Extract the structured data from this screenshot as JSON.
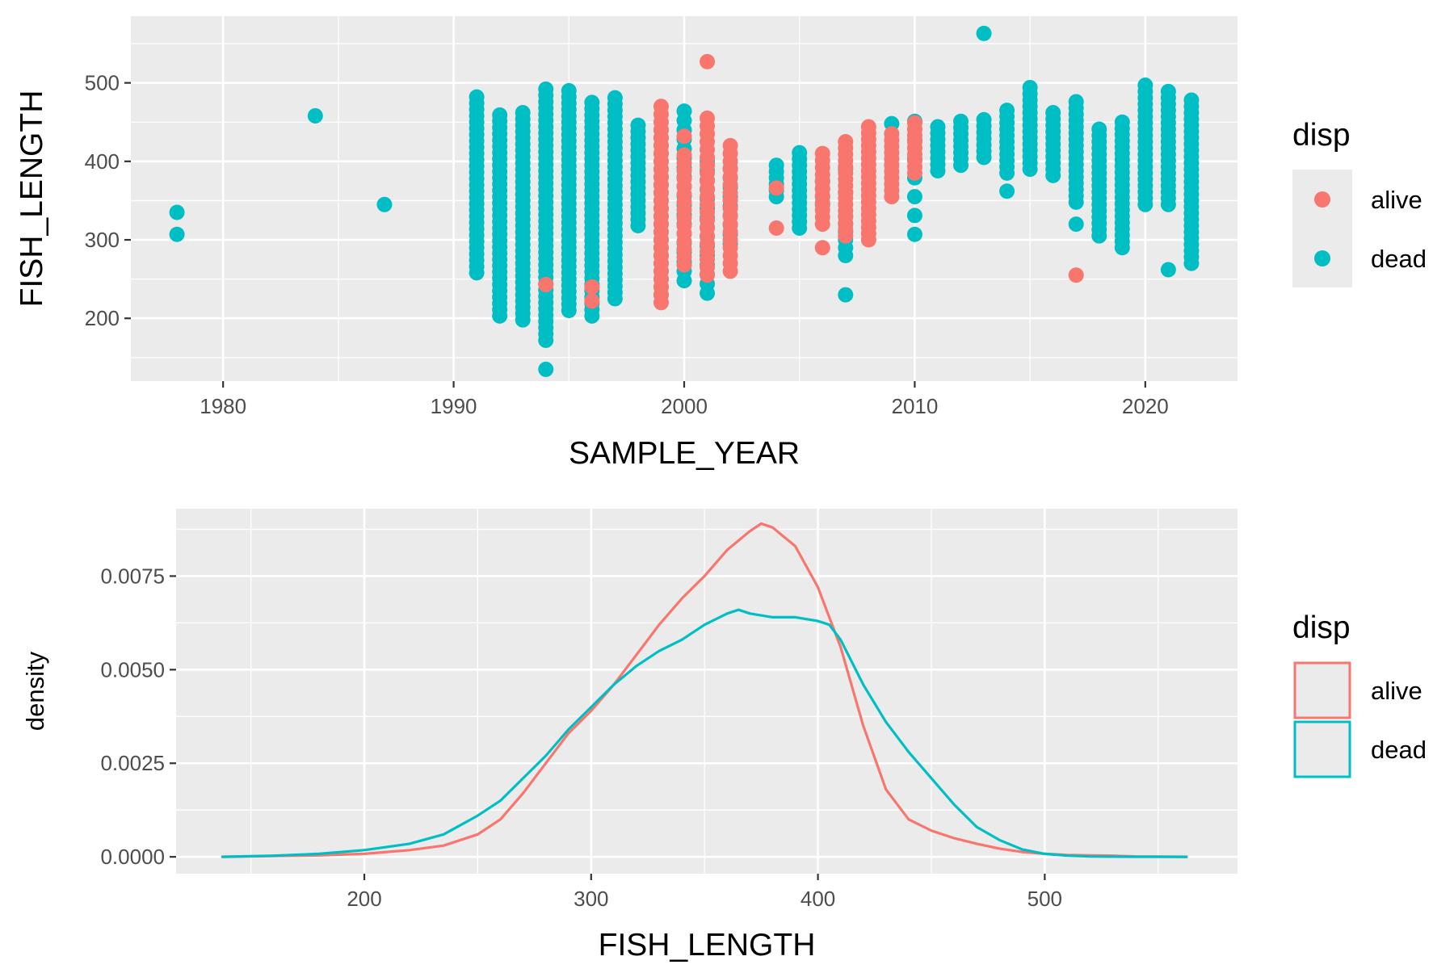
{
  "colors": {
    "alive": "#F8766D",
    "dead": "#00BFC4",
    "panel_background": "#EBEBEB",
    "grid": "#FFFFFF",
    "axis_text": "#4D4D4D",
    "title_text": "#000000"
  },
  "chart_data": [
    {
      "type": "scatter",
      "xlabel": "SAMPLE_YEAR",
      "ylabel": "FISH_LENGTH",
      "xlim": [
        1976,
        2024
      ],
      "ylim": [
        120,
        585
      ],
      "xticks": [
        1980,
        1990,
        2000,
        2010,
        2020
      ],
      "yticks": [
        200,
        300,
        400,
        500
      ],
      "grid": true,
      "legend": {
        "title": "disp",
        "position": "right",
        "entries": [
          "alive",
          "dead"
        ]
      },
      "series": [
        {
          "name": "dead",
          "color_key": "dead",
          "columns": [
            {
              "x": 1978,
              "y_min": 307,
              "y_max": 335,
              "step": 28
            },
            {
              "x": 1984,
              "y_min": 458,
              "y_max": 458,
              "step": 10
            },
            {
              "x": 1987,
              "y_min": 345,
              "y_max": 345,
              "step": 10
            },
            {
              "x": 1991,
              "y_min": 258,
              "y_max": 483,
              "step": 8
            },
            {
              "x": 1992,
              "y_min": 203,
              "y_max": 460,
              "step": 8
            },
            {
              "x": 1993,
              "y_min": 198,
              "y_max": 468,
              "step": 8
            },
            {
              "x": 1994,
              "y_min": 172,
              "y_max": 493,
              "step": 8
            },
            {
              "x": 1995,
              "y_min": 210,
              "y_max": 495,
              "step": 8
            },
            {
              "x": 1996,
              "y_min": 203,
              "y_max": 478,
              "step": 8
            },
            {
              "x": 1997,
              "y_min": 225,
              "y_max": 485,
              "step": 8
            },
            {
              "x": 1998,
              "y_min": 318,
              "y_max": 448,
              "step": 8
            },
            {
              "x": 1999,
              "y_min": 230,
              "y_max": 440,
              "step": 10
            },
            {
              "x": 2000,
              "y_min": 248,
              "y_max": 472,
              "step": 12
            },
            {
              "x": 2001,
              "y_min": 232,
              "y_max": 400,
              "step": 12
            },
            {
              "x": 2002,
              "y_min": 295,
              "y_max": 402,
              "step": 12
            },
            {
              "x": 2004,
              "y_min": 355,
              "y_max": 398,
              "step": 8
            },
            {
              "x": 2005,
              "y_min": 315,
              "y_max": 412,
              "step": 8
            },
            {
              "x": 2006,
              "y_min": 345,
              "y_max": 380,
              "step": 10
            },
            {
              "x": 2007,
              "y_min": 280,
              "y_max": 330,
              "step": 10
            },
            {
              "x": 2009,
              "y_min": 448,
              "y_max": 448,
              "step": 10
            },
            {
              "x": 2010,
              "y_min": 307,
              "y_max": 455,
              "step": 24
            },
            {
              "x": 2011,
              "y_min": 388,
              "y_max": 450,
              "step": 8
            },
            {
              "x": 2012,
              "y_min": 395,
              "y_max": 458,
              "step": 8
            },
            {
              "x": 2013,
              "y_min": 405,
              "y_max": 460,
              "step": 8
            },
            {
              "x": 2014,
              "y_min": 385,
              "y_max": 465,
              "step": 8
            },
            {
              "x": 2015,
              "y_min": 390,
              "y_max": 500,
              "step": 8
            },
            {
              "x": 2016,
              "y_min": 382,
              "y_max": 468,
              "step": 8
            },
            {
              "x": 2017,
              "y_min": 348,
              "y_max": 478,
              "step": 8
            },
            {
              "x": 2018,
              "y_min": 305,
              "y_max": 445,
              "step": 8
            },
            {
              "x": 2019,
              "y_min": 290,
              "y_max": 455,
              "step": 8
            },
            {
              "x": 2020,
              "y_min": 345,
              "y_max": 500,
              "step": 8
            },
            {
              "x": 2021,
              "y_min": 345,
              "y_max": 490,
              "step": 8
            },
            {
              "x": 2022,
              "y_min": 270,
              "y_max": 485,
              "step": 8
            }
          ],
          "points": [
            {
              "x": 1994,
              "y": 135
            },
            {
              "x": 2007,
              "y": 230
            },
            {
              "x": 2013,
              "y": 563
            },
            {
              "x": 2014,
              "y": 362
            },
            {
              "x": 2017,
              "y": 320
            },
            {
              "x": 2021,
              "y": 262
            },
            {
              "x": 2007,
              "y": 390
            },
            {
              "x": 2007,
              "y": 360
            }
          ]
        },
        {
          "name": "alive",
          "color_key": "alive",
          "columns": [
            {
              "x": 1999,
              "y_min": 220,
              "y_max": 476,
              "step": 10
            },
            {
              "x": 2000,
              "y_min": 268,
              "y_max": 410,
              "step": 10
            },
            {
              "x": 2001,
              "y_min": 255,
              "y_max": 462,
              "step": 10
            },
            {
              "x": 2002,
              "y_min": 260,
              "y_max": 428,
              "step": 10
            },
            {
              "x": 2006,
              "y_min": 320,
              "y_max": 415,
              "step": 9
            },
            {
              "x": 2007,
              "y_min": 305,
              "y_max": 428,
              "step": 8
            },
            {
              "x": 2008,
              "y_min": 300,
              "y_max": 445,
              "step": 8
            },
            {
              "x": 2009,
              "y_min": 355,
              "y_max": 440,
              "step": 8
            },
            {
              "x": 2010,
              "y_min": 385,
              "y_max": 450,
              "step": 8
            }
          ],
          "points": [
            {
              "x": 2001,
              "y": 527
            },
            {
              "x": 2000,
              "y": 432
            },
            {
              "x": 2004,
              "y": 315
            },
            {
              "x": 2006,
              "y": 290
            },
            {
              "x": 2017,
              "y": 255
            },
            {
              "x": 1996,
              "y": 240
            },
            {
              "x": 1996,
              "y": 222
            },
            {
              "x": 1994,
              "y": 243
            },
            {
              "x": 2004,
              "y": 366
            }
          ]
        }
      ]
    },
    {
      "type": "line",
      "xlabel": "FISH_LENGTH",
      "ylabel": "density",
      "xlim": [
        117,
        585
      ],
      "ylim": [
        -0.00045,
        0.0093
      ],
      "xticks": [
        200,
        300,
        400,
        500
      ],
      "ytick_values": [
        0,
        0.0025,
        0.005,
        0.0075
      ],
      "ytick_labels": [
        "0.0000",
        "0.0025",
        "0.0050",
        "0.0075"
      ],
      "grid": true,
      "legend": {
        "title": "disp",
        "position": "right",
        "entries": [
          "alive",
          "dead"
        ]
      },
      "series": [
        {
          "name": "alive",
          "color_key": "alive",
          "x": [
            137,
            160,
            180,
            200,
            220,
            235,
            250,
            260,
            270,
            280,
            290,
            300,
            310,
            320,
            330,
            340,
            350,
            360,
            370,
            375,
            380,
            390,
            400,
            410,
            420,
            430,
            440,
            450,
            460,
            470,
            480,
            490,
            500,
            510,
            520,
            530,
            540,
            563
          ],
          "y": [
            0,
            2e-05,
            4e-05,
            8e-05,
            0.00018,
            0.0003,
            0.0006,
            0.001,
            0.0017,
            0.0025,
            0.0033,
            0.0039,
            0.0046,
            0.0054,
            0.0062,
            0.0069,
            0.0075,
            0.0082,
            0.0087,
            0.0089,
            0.0088,
            0.0083,
            0.0072,
            0.0056,
            0.0035,
            0.0018,
            0.001,
            0.0007,
            0.0005,
            0.00035,
            0.00022,
            0.00013,
            8e-05,
            5e-05,
            4e-05,
            3e-05,
            1e-05,
            0
          ]
        },
        {
          "name": "dead",
          "color_key": "dead",
          "x": [
            137,
            160,
            180,
            200,
            220,
            235,
            250,
            260,
            270,
            280,
            290,
            300,
            310,
            320,
            330,
            340,
            350,
            360,
            365,
            370,
            380,
            390,
            400,
            405,
            410,
            420,
            430,
            440,
            450,
            460,
            470,
            480,
            490,
            500,
            510,
            520,
            530,
            540,
            563
          ],
          "y": [
            0,
            3e-05,
            8e-05,
            0.00018,
            0.00035,
            0.0006,
            0.0011,
            0.0015,
            0.0021,
            0.0027,
            0.0034,
            0.004,
            0.0046,
            0.0051,
            0.0055,
            0.0058,
            0.0062,
            0.0065,
            0.0066,
            0.0065,
            0.0064,
            0.0064,
            0.0063,
            0.0062,
            0.0058,
            0.0046,
            0.0036,
            0.0028,
            0.0021,
            0.0014,
            0.0008,
            0.00045,
            0.0002,
            8e-05,
            3e-05,
            1e-05,
            5e-06,
            2e-06,
            0
          ]
        }
      ]
    }
  ]
}
